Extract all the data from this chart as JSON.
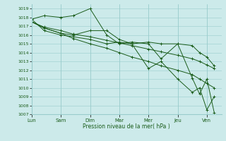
{
  "xlabel": "Pression niveau de la mer( hPa )",
  "bg_color": "#cceaea",
  "grid_color": "#99cccc",
  "line_color": "#1a5c1a",
  "ylim": [
    1007,
    1019.5
  ],
  "xlim": [
    0,
    6.5
  ],
  "xtick_labels": [
    "Lun",
    "Sam",
    "Dim",
    "Mar",
    "Mer",
    "Jeu",
    "Ven"
  ],
  "xtick_positions": [
    0,
    1,
    2,
    3,
    4,
    5,
    6
  ],
  "ytick_positions": [
    1007,
    1008,
    1009,
    1010,
    1011,
    1012,
    1013,
    1014,
    1015,
    1016,
    1017,
    1018,
    1019
  ],
  "series": [
    {
      "x": [
        0,
        0.43,
        1.0,
        1.43,
        2.0,
        2.57,
        3.0,
        3.43,
        4.0,
        4.43,
        5.0,
        5.5,
        5.75,
        6.0,
        6.25
      ],
      "y": [
        1017.8,
        1018.2,
        1018.0,
        1018.2,
        1019.0,
        1016.0,
        1015.0,
        1015.2,
        1015.0,
        1013.3,
        1015.0,
        1011.1,
        1009.3,
        1011.0,
        1007.2
      ]
    },
    {
      "x": [
        0,
        0.43,
        1.0,
        1.43,
        2.0,
        2.57,
        3.0,
        3.43,
        4.0,
        4.43,
        5.0,
        5.5,
        5.75,
        6.0,
        6.25
      ],
      "y": [
        1017.5,
        1016.8,
        1016.2,
        1016.0,
        1016.5,
        1016.5,
        1015.5,
        1015.0,
        1015.2,
        1015.0,
        1015.0,
        1014.8,
        1014.0,
        1013.5,
        1012.5
      ]
    },
    {
      "x": [
        0,
        0.43,
        1.0,
        1.43,
        2.0,
        2.57,
        3.0,
        3.43,
        4.0,
        4.43,
        5.0,
        5.5,
        5.75,
        6.0,
        6.25
      ],
      "y": [
        1017.5,
        1016.9,
        1016.5,
        1016.1,
        1015.8,
        1015.4,
        1015.1,
        1014.8,
        1014.4,
        1014.1,
        1013.7,
        1013.3,
        1013.0,
        1012.6,
        1012.2
      ]
    },
    {
      "x": [
        0,
        0.43,
        1.0,
        1.43,
        2.0,
        2.57,
        3.0,
        3.43,
        4.0,
        4.43,
        5.0,
        5.5,
        5.75,
        6.0,
        6.25
      ],
      "y": [
        1017.8,
        1016.5,
        1016.0,
        1015.8,
        1015.5,
        1015.0,
        1015.2,
        1015.0,
        1012.2,
        1013.0,
        1011.0,
        1009.5,
        1010.0,
        1007.5,
        1009.0
      ]
    },
    {
      "x": [
        0,
        0.43,
        1.0,
        1.43,
        2.0,
        2.57,
        3.0,
        3.43,
        4.0,
        4.43,
        5.0,
        5.5,
        5.75,
        6.0,
        6.25
      ],
      "y": [
        1017.5,
        1016.8,
        1016.2,
        1015.6,
        1015.0,
        1014.5,
        1014.0,
        1013.5,
        1013.0,
        1012.5,
        1012.0,
        1011.5,
        1011.0,
        1010.5,
        1010.0
      ]
    }
  ]
}
